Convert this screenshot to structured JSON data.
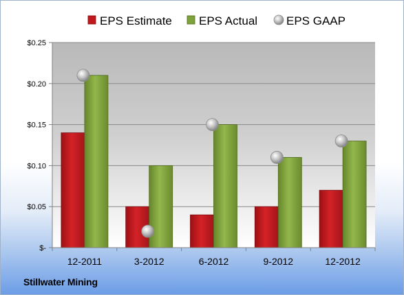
{
  "footer": {
    "company": "Stillwater Mining"
  },
  "chart_data": {
    "type": "bar",
    "categories": [
      "12-2011",
      "3-2012",
      "6-2012",
      "9-2012",
      "12-2012"
    ],
    "series": [
      {
        "name": "EPS Estimate",
        "type": "bar",
        "color": "#c0191d",
        "values": [
          0.14,
          0.05,
          0.04,
          0.05,
          0.07
        ]
      },
      {
        "name": "EPS Actual",
        "type": "bar",
        "color": "#7fa23c",
        "values": [
          0.21,
          0.1,
          0.15,
          0.11,
          0.13
        ]
      },
      {
        "name": "EPS GAAP",
        "type": "scatter",
        "color": "#a8a8a8",
        "values": [
          0.21,
          0.02,
          0.15,
          0.11,
          0.13
        ]
      }
    ],
    "y_ticks": [
      {
        "value": 0.25,
        "label": "$0.25"
      },
      {
        "value": 0.2,
        "label": "$0.20"
      },
      {
        "value": 0.15,
        "label": "$0.15"
      },
      {
        "value": 0.1,
        "label": "$0.10"
      },
      {
        "value": 0.05,
        "label": "$0.05"
      },
      {
        "value": 0,
        "label": "$-"
      }
    ],
    "ylim": [
      0,
      0.25
    ],
    "grid": true,
    "legend_position": "top"
  }
}
